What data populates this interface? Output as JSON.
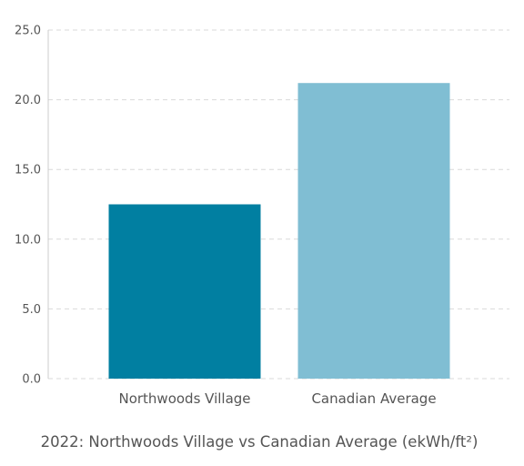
{
  "chart_data": {
    "type": "bar",
    "title": "2022: Northwoods Village vs Canadian Average (ekWh/ft²)",
    "xlabel": "",
    "ylabel": "",
    "categories": [
      "Northwoods Village",
      "Canadian Average"
    ],
    "values": [
      12.5,
      21.2
    ],
    "ylim": [
      0,
      25
    ],
    "yticks": [
      "0.0",
      "5.0",
      "10.0",
      "15.0",
      "20.0",
      "25.0"
    ],
    "grid": true,
    "legend": "none",
    "colors": [
      "#017fa1",
      "#80bed3"
    ],
    "gridline_color": "#d9d9d9",
    "axis_color": "#cccccc",
    "text_color": "#555555"
  }
}
